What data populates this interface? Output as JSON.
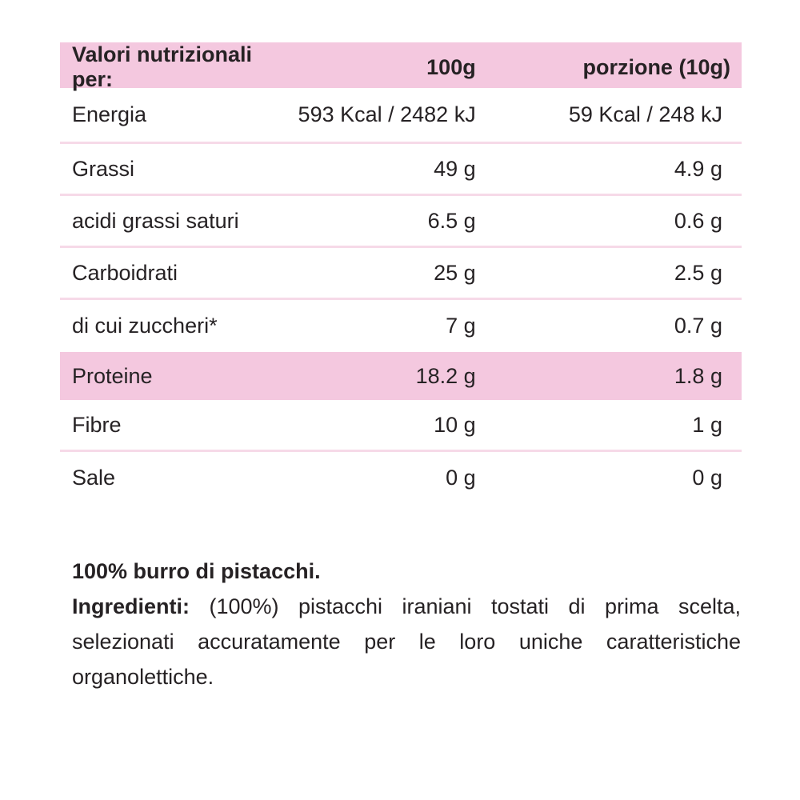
{
  "colors": {
    "band_pink": "#F4C8DF",
    "divider_pink": "#F6DAE8",
    "text": "#262224",
    "background": "#FFFFFF"
  },
  "table": {
    "header": {
      "label": "Valori nutrizionali per:",
      "col_100g": "100g",
      "col_portion": "porzione (10g)"
    },
    "rows": [
      {
        "label": "Energia",
        "per_100g": "593 Kcal / 2482 kJ",
        "per_portion": "59 Kcal / 248 kJ",
        "highlight": false
      },
      {
        "label": "Grassi",
        "per_100g": "49 g",
        "per_portion": "4.9 g",
        "highlight": false
      },
      {
        "label": "acidi grassi saturi",
        "per_100g": "6.5 g",
        "per_portion": "0.6 g",
        "highlight": false
      },
      {
        "label": "Carboidrati",
        "per_100g": "25 g",
        "per_portion": "2.5 g",
        "highlight": false
      },
      {
        "label": "di cui zuccheri*",
        "per_100g": "7 g",
        "per_portion": "0.7 g",
        "highlight": false
      },
      {
        "label": "Proteine",
        "per_100g": "18.2 g",
        "per_portion": "1.8 g",
        "highlight": true
      },
      {
        "label": "Fibre",
        "per_100g": "10 g",
        "per_portion": "1 g",
        "highlight": false
      },
      {
        "label": "Sale",
        "per_100g": "0 g",
        "per_portion": "0 g",
        "highlight": false
      }
    ]
  },
  "description": {
    "headline": "100% burro di pistacchi.",
    "ingredients_label": "Ingredienti:",
    "ingredients_text": " (100%) pistacchi iraniani tostati di prima scelta, selezionati accuratamente per le loro uniche caratteristiche organolettiche."
  }
}
